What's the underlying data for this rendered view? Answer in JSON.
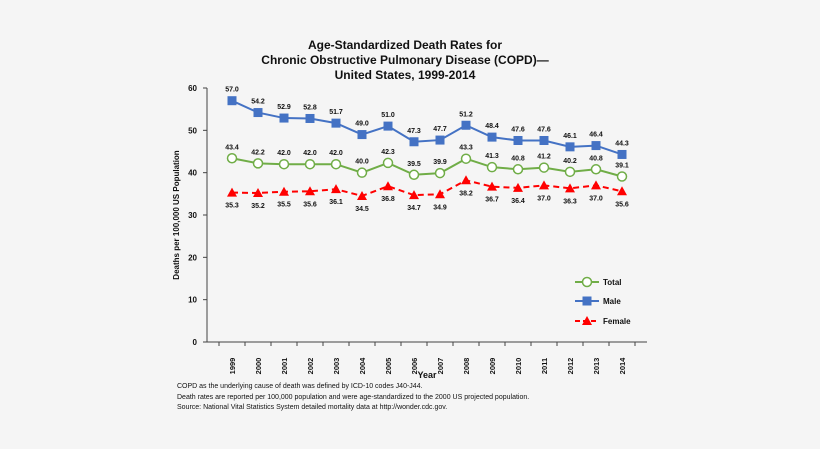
{
  "chart_data": {
    "type": "line",
    "title": [
      "Age-Standardized Death Rates for",
      "Chronic Obstructive Pulmonary Disease (COPD)—",
      "United States, 1999-2014"
    ],
    "xlabel": "Year",
    "ylabel": "Deaths per 100,000 US Population",
    "ylim": [
      0,
      60
    ],
    "yticks": [
      0,
      10,
      20,
      30,
      40,
      50,
      60
    ],
    "grid": false,
    "legend_position": "bottom-right",
    "categories": [
      "1999",
      "2000",
      "2001",
      "2002",
      "2003",
      "2004",
      "2005",
      "2006",
      "2007",
      "2008",
      "2009",
      "2010",
      "2011",
      "2012",
      "2013",
      "2014"
    ],
    "series": [
      {
        "name": "Total",
        "color": "#70ad47",
        "marker": "open-circle",
        "style": "solid",
        "values": [
          43.4,
          42.2,
          42.0,
          42.0,
          42.0,
          40.0,
          42.3,
          39.5,
          39.9,
          43.3,
          41.3,
          40.8,
          41.2,
          40.2,
          40.8,
          39.1
        ]
      },
      {
        "name": "Male",
        "color": "#4472c4",
        "marker": "square",
        "style": "solid",
        "values": [
          57.0,
          54.2,
          52.9,
          52.8,
          51.7,
          49.0,
          51.0,
          47.3,
          47.7,
          51.2,
          48.4,
          47.6,
          47.6,
          46.1,
          46.4,
          44.3
        ]
      },
      {
        "name": "Female",
        "color": "#ff0000",
        "marker": "triangle",
        "style": "dashed",
        "values": [
          35.3,
          35.2,
          35.5,
          35.6,
          36.1,
          34.5,
          36.8,
          34.7,
          34.9,
          38.2,
          36.7,
          36.4,
          37.0,
          36.3,
          37.0,
          35.6
        ]
      }
    ]
  },
  "notes": [
    "COPD as the underlying cause of death was defined by ICD-10 codes J40-J44.",
    "Death rates are reported per 100,000 population and were age-standardized to the 2000 US projected population.",
    "Source: National Vital Statistics System detailed mortality data at http://wonder.cdc.gov."
  ]
}
